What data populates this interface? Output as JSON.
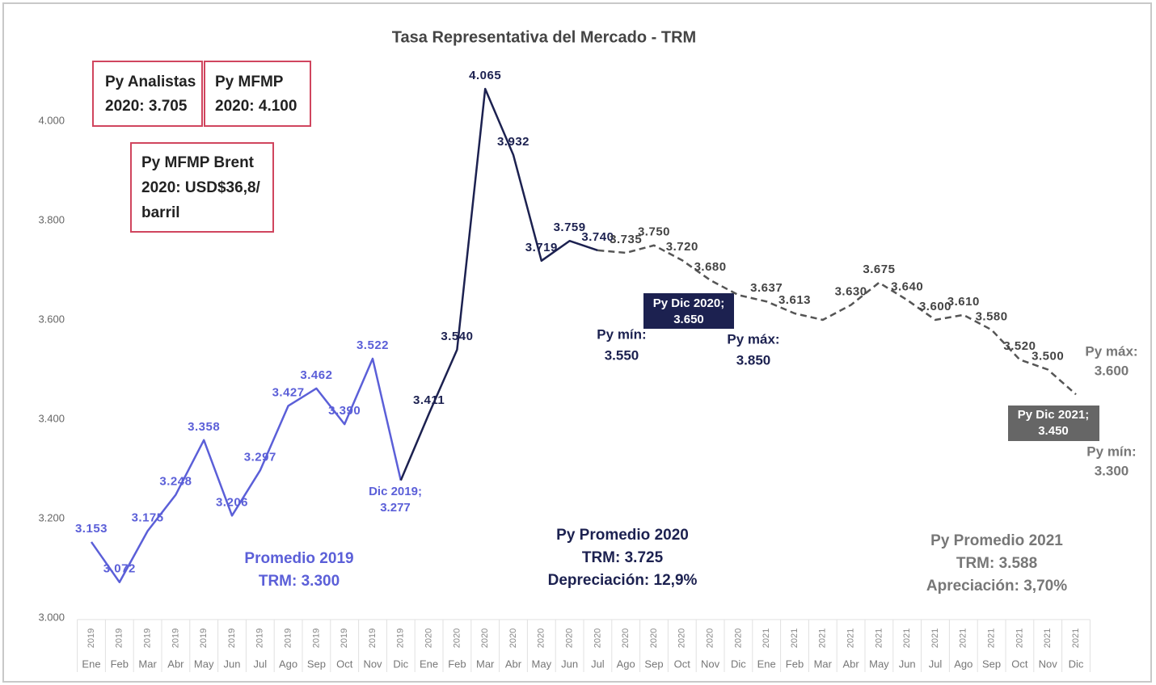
{
  "chart_data": {
    "type": "line",
    "title": "Tasa Representativa del Mercado - TRM",
    "categories": [
      "Ene",
      "Feb",
      "Mar",
      "Abr",
      "May",
      "Jun",
      "Jul",
      "Ago",
      "Sep",
      "Oct",
      "Nov",
      "Dic",
      "Ene",
      "Feb",
      "Mar",
      "Abr",
      "May",
      "Jun",
      "Jul",
      "Ago",
      "Sep",
      "Oct",
      "Nov",
      "Dic",
      "Ene",
      "Feb",
      "Mar",
      "Abr",
      "May",
      "Jun",
      "Jul",
      "Ago",
      "Sep",
      "Oct",
      "Nov",
      "Dic"
    ],
    "years": [
      "2019",
      "2019",
      "2019",
      "2019",
      "2019",
      "2019",
      "2019",
      "2019",
      "2019",
      "2019",
      "2019",
      "2019",
      "2020",
      "2020",
      "2020",
      "2020",
      "2020",
      "2020",
      "2020",
      "2020",
      "2020",
      "2020",
      "2020",
      "2020",
      "2021",
      "2021",
      "2021",
      "2021",
      "2021",
      "2021",
      "2021",
      "2021",
      "2021",
      "2021",
      "2021",
      "2021"
    ],
    "ylim": [
      3000,
      4200
    ],
    "yticks": [
      {
        "value": 3000,
        "label": "3.000"
      },
      {
        "value": 3200,
        "label": "3.200"
      },
      {
        "value": 3400,
        "label": "3.400"
      },
      {
        "value": 3600,
        "label": "3.600"
      },
      {
        "value": 3800,
        "label": "3.800"
      },
      {
        "value": 4000,
        "label": "4.000"
      }
    ],
    "series": [
      {
        "color": "#5b5fd8",
        "dashed": false,
        "values": [
          3153,
          3072,
          3175,
          3248,
          3358,
          3206,
          3297,
          3427,
          3462,
          3390,
          3522,
          3277,
          null,
          null,
          null,
          null,
          null,
          null,
          null,
          null,
          null,
          null,
          null,
          null,
          null,
          null,
          null,
          null,
          null,
          null,
          null,
          null,
          null,
          null,
          null,
          null
        ],
        "value_labels": [
          "3.153",
          "3.072",
          "3.175",
          "3.248",
          "3.358",
          "3.206",
          "3.297",
          "3.427",
          "3.462",
          "3.390",
          "3.522",
          null,
          null,
          null,
          null,
          null,
          null,
          null,
          null,
          null,
          null,
          null,
          null,
          null,
          null,
          null,
          null,
          null,
          null,
          null,
          null,
          null,
          null,
          null,
          null,
          null
        ]
      },
      {
        "color": "#1c2150",
        "dashed": false,
        "values": [
          null,
          null,
          null,
          null,
          null,
          null,
          null,
          null,
          null,
          null,
          null,
          3277,
          3411,
          3540,
          4065,
          3932,
          3719,
          3759,
          3740,
          null,
          null,
          null,
          null,
          null,
          null,
          null,
          null,
          null,
          null,
          null,
          null,
          null,
          null,
          null,
          null,
          null
        ],
        "value_labels": [
          null,
          null,
          null,
          null,
          null,
          null,
          null,
          null,
          null,
          null,
          null,
          null,
          "3.411",
          "3.540",
          "4.065",
          "3.932",
          "3.719",
          "3.759",
          "3.740",
          null,
          null,
          null,
          null,
          null,
          null,
          null,
          null,
          null,
          null,
          null,
          null,
          null,
          null,
          null,
          null,
          null
        ]
      },
      {
        "color": "#555555",
        "dashed": true,
        "values": [
          null,
          null,
          null,
          null,
          null,
          null,
          null,
          null,
          null,
          null,
          null,
          null,
          null,
          null,
          null,
          null,
          null,
          null,
          3740,
          3735,
          3750,
          3720,
          3680,
          3650,
          3637,
          3613,
          3600,
          3630,
          3675,
          3640,
          3600,
          3610,
          3580,
          3520,
          3500,
          3450
        ],
        "value_labels": [
          null,
          null,
          null,
          null,
          null,
          null,
          null,
          null,
          null,
          null,
          null,
          null,
          null,
          null,
          null,
          null,
          null,
          null,
          null,
          "3.735",
          "3.750",
          "3.720",
          "3.680",
          null,
          "3.637",
          "3.613",
          null,
          "3.630",
          "3.675",
          "3.640",
          "3.600",
          "3.610",
          "3.580",
          "3.520",
          "3.500",
          null
        ]
      }
    ],
    "annotations": [
      [
        "Py Analistas",
        "2020: 3.705"
      ],
      [
        "Py MFMP",
        "2020: 4.100"
      ],
      [
        "Py MFMP Brent",
        "2020: USD$36,8/",
        "barril"
      ],
      [
        "Py Dic 2020;",
        "3.650"
      ],
      [
        "Py mín:",
        "3.550"
      ],
      [
        "Py máx:",
        "3.850"
      ],
      [
        "Py máx:",
        "3.600"
      ],
      [
        "Py Dic 2021;",
        "3.450"
      ],
      [
        "Py mín:",
        "3.300"
      ],
      [
        "Dic 2019;",
        "3.277"
      ],
      [
        "Promedio 2019",
        "TRM: 3.300"
      ],
      [
        "Py Promedio 2020",
        "TRM: 3.725",
        "Depreciación: 12,9%"
      ],
      [
        "Py Promedio 2021",
        "TRM: 3.588",
        "Apreciación: 3,70%"
      ]
    ]
  }
}
